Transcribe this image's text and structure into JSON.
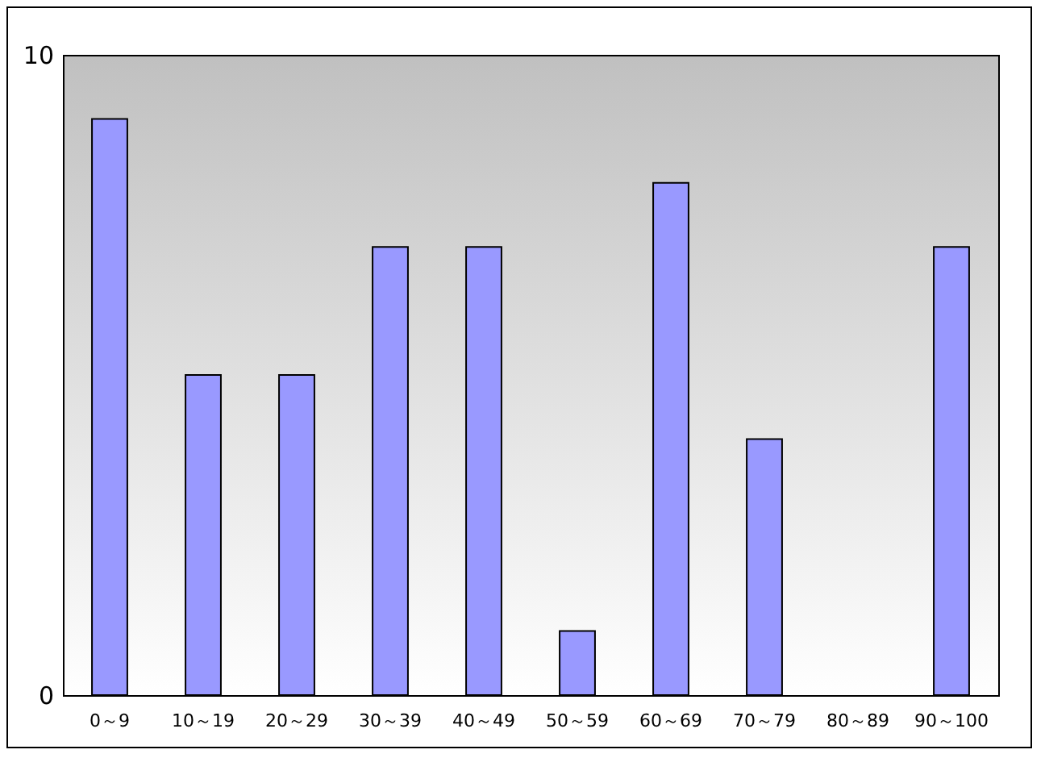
{
  "chart_data": {
    "type": "bar",
    "categories": [
      "0～9",
      "10～19",
      "20～29",
      "30～39",
      "40～49",
      "50～59",
      "60～69",
      "70～79",
      "80～89",
      "90～100"
    ],
    "values": [
      9,
      5,
      5,
      7,
      7,
      1,
      8,
      4,
      0,
      7
    ],
    "color": "#9999ff",
    "ylim": [
      0,
      10
    ],
    "yticks": [
      0,
      10
    ],
    "grid": false
  }
}
